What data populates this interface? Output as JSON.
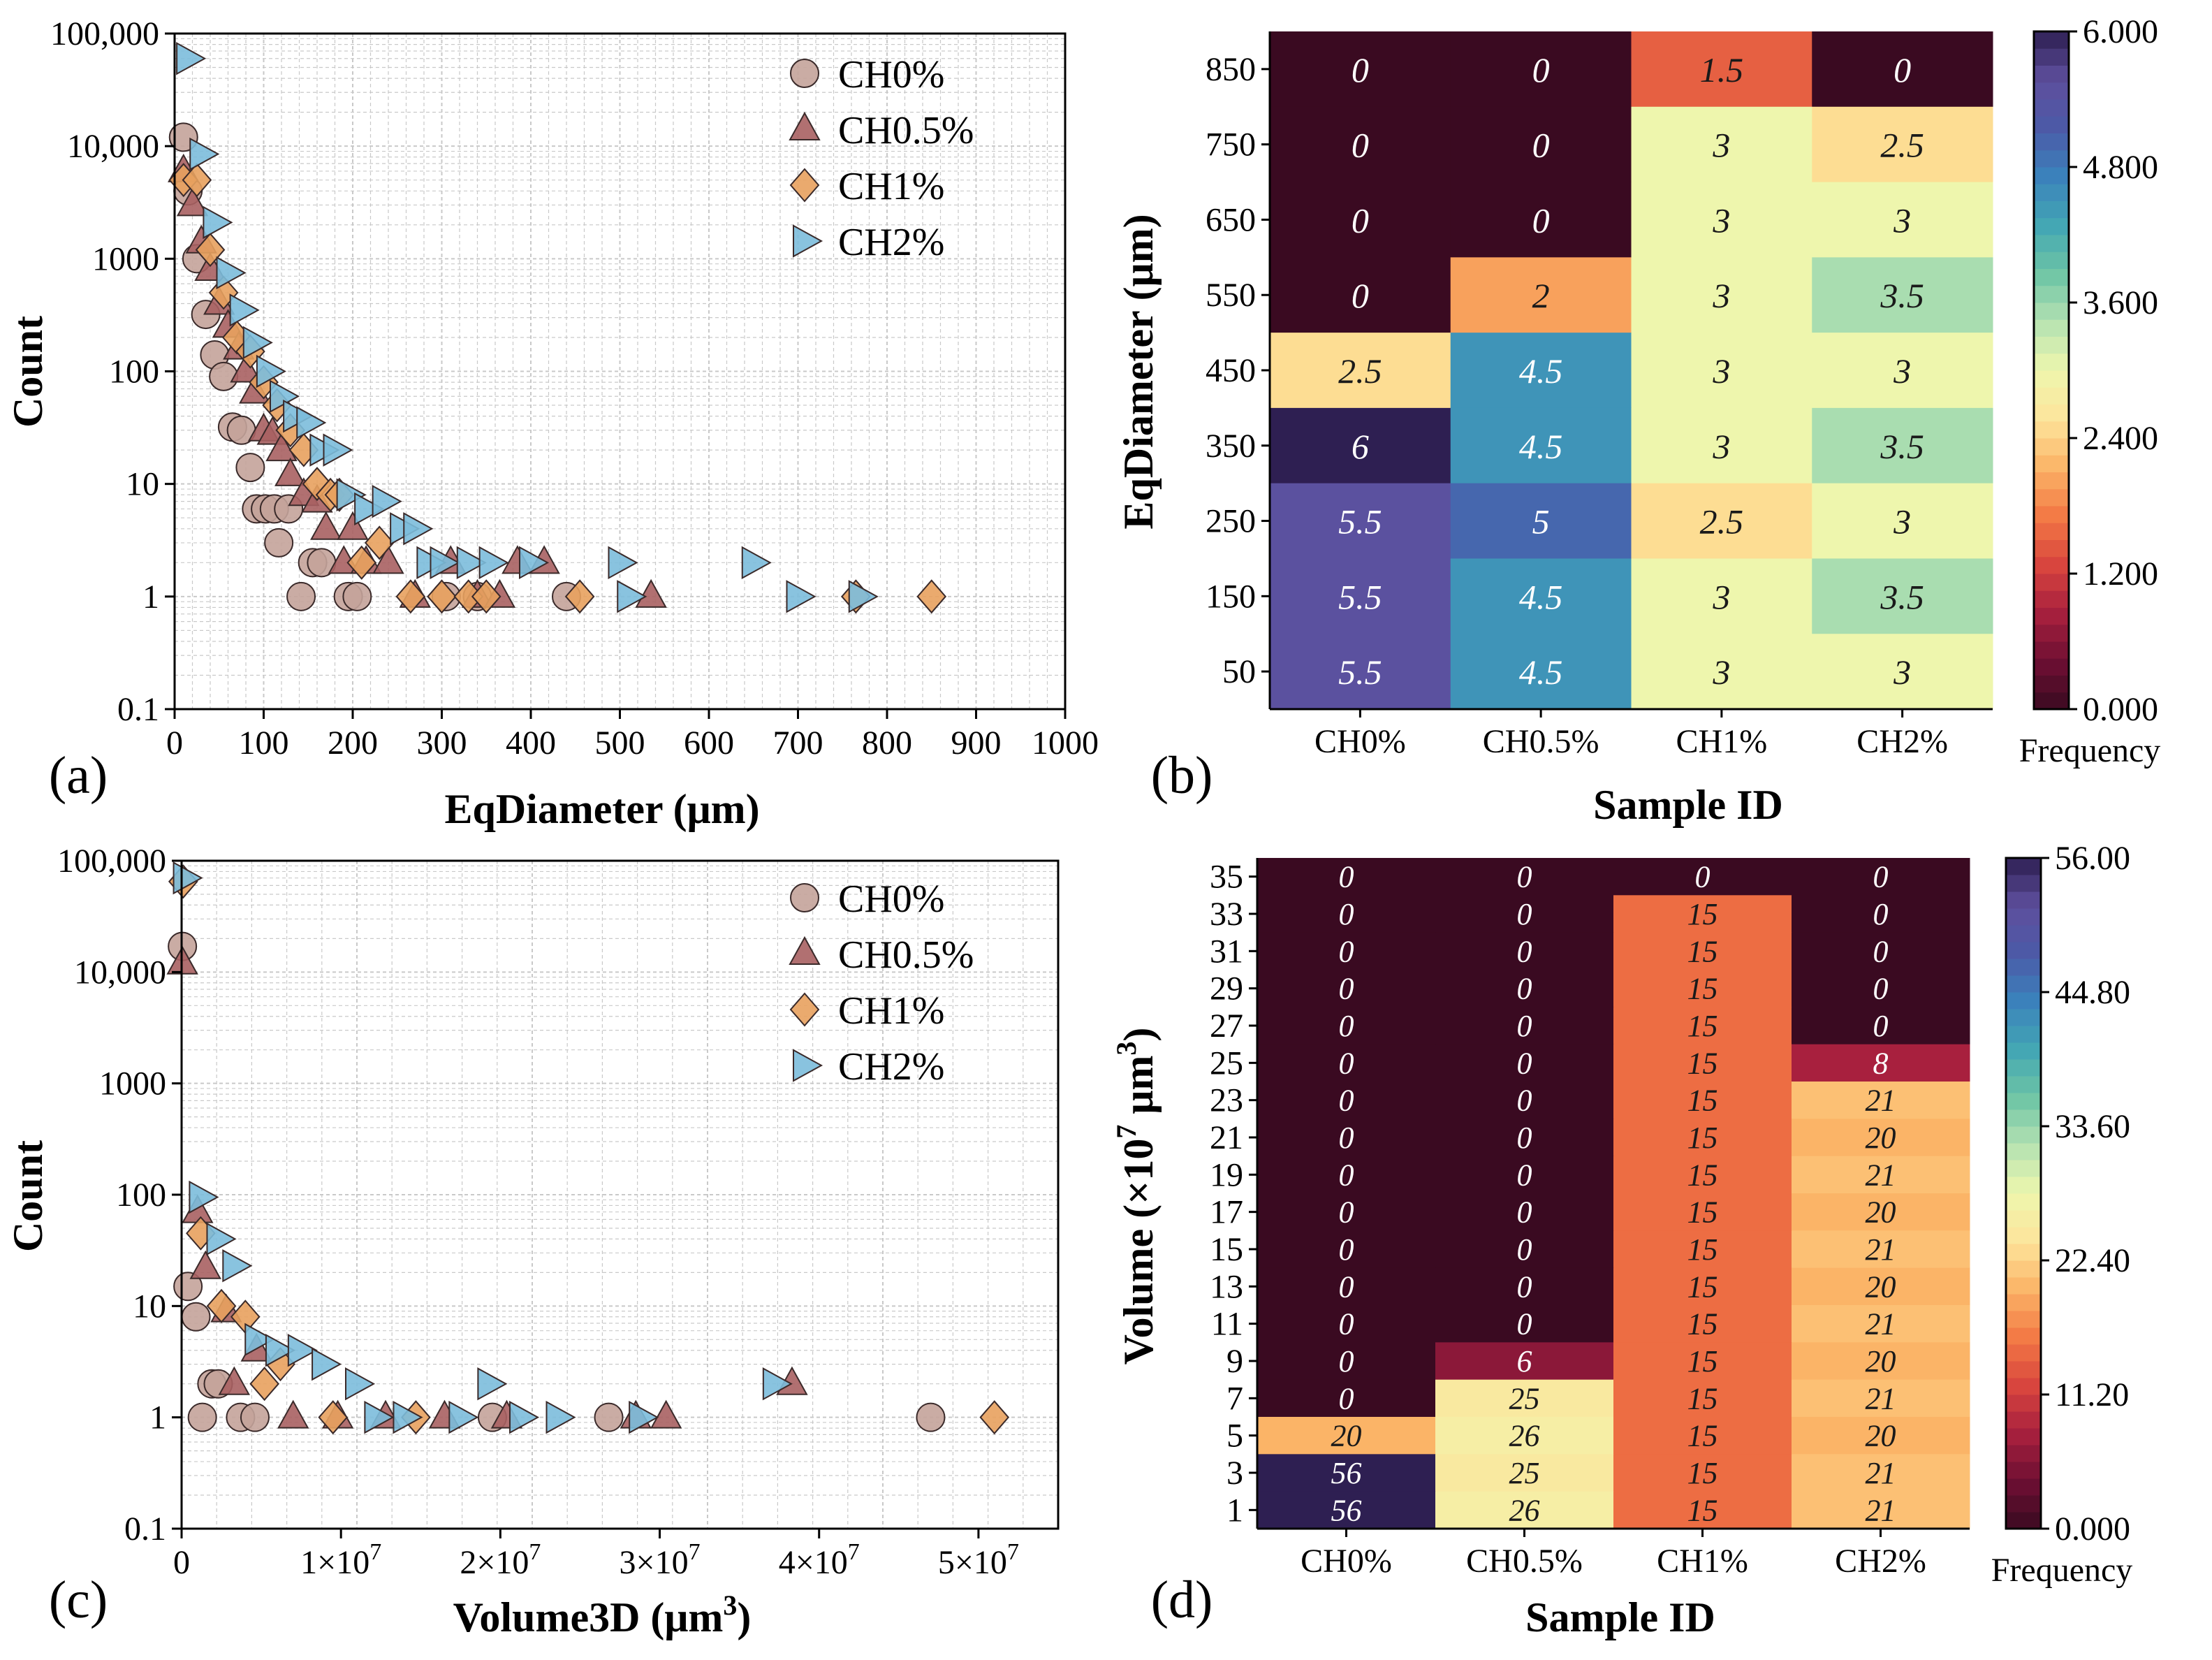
{
  "chart_data": [
    {
      "panel": "(a)",
      "type": "scatter",
      "xlabel": "EqDiameter (μm)",
      "ylabel": "Count",
      "xlim": [
        0,
        1000
      ],
      "ylim": [
        0.1,
        100000
      ],
      "yscale": "log",
      "xticks": [
        "0",
        "100",
        "200",
        "300",
        "400",
        "500",
        "600",
        "700",
        "800",
        "900",
        "1000"
      ],
      "yticks": [
        "0.1",
        "1",
        "10",
        "100",
        "1000",
        "10,000",
        "100,000"
      ],
      "legend_position": "top-right",
      "series": [
        {
          "name": "CH0%",
          "marker": "circle",
          "color": "#c4a39a",
          "points": [
            [
              10,
              12000
            ],
            [
              15,
              4000
            ],
            [
              25,
              1000
            ],
            [
              35,
              320
            ],
            [
              45,
              140
            ],
            [
              55,
              90
            ],
            [
              65,
              32
            ],
            [
              75,
              30
            ],
            [
              85,
              14
            ],
            [
              92,
              6
            ],
            [
              102,
              6
            ],
            [
              112,
              6
            ],
            [
              117,
              3
            ],
            [
              128,
              6
            ],
            [
              142,
              1
            ],
            [
              155,
              2
            ],
            [
              165,
              2
            ],
            [
              195,
              1
            ],
            [
              205,
              1
            ],
            [
              305,
              1
            ],
            [
              340,
              1
            ],
            [
              440,
              1
            ]
          ]
        },
        {
          "name": "CH0.5%",
          "marker": "triangle",
          "color": "#a86062",
          "points": [
            [
              10,
              6000
            ],
            [
              20,
              3000
            ],
            [
              30,
              1400
            ],
            [
              40,
              800
            ],
            [
              50,
              400
            ],
            [
              60,
              250
            ],
            [
              72,
              160
            ],
            [
              80,
              100
            ],
            [
              90,
              65
            ],
            [
              100,
              30
            ],
            [
              110,
              28
            ],
            [
              120,
              20
            ],
            [
              130,
              12
            ],
            [
              145,
              8
            ],
            [
              160,
              7
            ],
            [
              170,
              4
            ],
            [
              190,
              2
            ],
            [
              200,
              4
            ],
            [
              215,
              2
            ],
            [
              240,
              2
            ],
            [
              270,
              1
            ],
            [
              310,
              2
            ],
            [
              340,
              1
            ],
            [
              365,
              1
            ],
            [
              385,
              2
            ],
            [
              415,
              2
            ],
            [
              535,
              1
            ]
          ]
        },
        {
          "name": "CH1%",
          "marker": "diamond",
          "color": "#e8a15e",
          "points": [
            [
              10,
              5000
            ],
            [
              25,
              5000
            ],
            [
              40,
              1200
            ],
            [
              55,
              500
            ],
            [
              70,
              200
            ],
            [
              85,
              150
            ],
            [
              100,
              80
            ],
            [
              115,
              50
            ],
            [
              130,
              30
            ],
            [
              145,
              20
            ],
            [
              160,
              10
            ],
            [
              175,
              8
            ],
            [
              185,
              8
            ],
            [
              210,
              2
            ],
            [
              230,
              3
            ],
            [
              265,
              1
            ],
            [
              300,
              1
            ],
            [
              330,
              1
            ],
            [
              350,
              1
            ],
            [
              455,
              1
            ],
            [
              765,
              1
            ],
            [
              850,
              1
            ]
          ]
        },
        {
          "name": "CH2%",
          "marker": "triangle-right",
          "color": "#7cbcdc",
          "points": [
            [
              15,
              60000
            ],
            [
              30,
              8500
            ],
            [
              45,
              2100
            ],
            [
              60,
              750
            ],
            [
              75,
              350
            ],
            [
              90,
              180
            ],
            [
              105,
              100
            ],
            [
              120,
              60
            ],
            [
              135,
              40
            ],
            [
              150,
              35
            ],
            [
              165,
              20
            ],
            [
              180,
              20
            ],
            [
              195,
              8
            ],
            [
              215,
              6
            ],
            [
              235,
              7
            ],
            [
              255,
              4
            ],
            [
              270,
              4
            ],
            [
              285,
              2
            ],
            [
              300,
              2
            ],
            [
              330,
              2
            ],
            [
              355,
              2
            ],
            [
              400,
              2
            ],
            [
              500,
              2
            ],
            [
              510,
              1
            ],
            [
              650,
              2
            ],
            [
              700,
              1
            ],
            [
              770,
              1
            ]
          ]
        }
      ]
    },
    {
      "panel": "(b)",
      "type": "heatmap",
      "xlabel": "Sample ID",
      "ylabel": "EqDiameter (μm)",
      "categories": [
        "CH0%",
        "CH0.5%",
        "CH1%",
        "CH2%"
      ],
      "y_categories": [
        "850",
        "750",
        "650",
        "550",
        "450",
        "350",
        "250",
        "150",
        "50"
      ],
      "values": [
        [
          0,
          0,
          1.5,
          0
        ],
        [
          0,
          0,
          3,
          2.5
        ],
        [
          0,
          0,
          3,
          3
        ],
        [
          0,
          2,
          3,
          3.5
        ],
        [
          2.5,
          4.5,
          3,
          3
        ],
        [
          6,
          4.5,
          3,
          3.5
        ],
        [
          5.5,
          5,
          2.5,
          3
        ],
        [
          5.5,
          4.5,
          3,
          3.5
        ],
        [
          5.5,
          4.5,
          3,
          3
        ]
      ],
      "cell_labels": [
        [
          "0",
          "0",
          "1.5",
          "0"
        ],
        [
          "0",
          "0",
          "3",
          "2.5"
        ],
        [
          "0",
          "0",
          "3",
          "3"
        ],
        [
          "0",
          "2",
          "3",
          "3.5"
        ],
        [
          "2.5",
          "4.5",
          "3",
          "3"
        ],
        [
          "6",
          "4.5",
          "3",
          "3.5"
        ],
        [
          "5.5",
          "5",
          "2.5",
          "3"
        ],
        [
          "5.5",
          "4.5",
          "3",
          "3.5"
        ],
        [
          "5.5",
          "4.5",
          "3",
          "3"
        ]
      ],
      "vmin": 0,
      "vmax": 6,
      "colorbar_label": "Frequency",
      "colorbar_ticks": [
        "0.000",
        "1.200",
        "2.400",
        "3.600",
        "4.800",
        "6.000"
      ]
    },
    {
      "panel": "(c)",
      "type": "scatter",
      "xlabel": "Volume3D (μm³)",
      "ylabel": "Count",
      "xlim": [
        0,
        55000000
      ],
      "ylim": [
        0.1,
        100000
      ],
      "yscale": "log",
      "xticks": [
        "0",
        "1×10⁷",
        "2×10⁷",
        "3×10⁷",
        "4×10⁷",
        "5×10⁷"
      ],
      "yticks": [
        "0.1",
        "1",
        "10",
        "100",
        "1000",
        "10,000",
        "100,000"
      ],
      "legend_position": "top-right",
      "series": [
        {
          "name": "CH0%",
          "marker": "circle",
          "color": "#c4a39a",
          "points": [
            [
              50000,
              17000
            ],
            [
              400000,
              15
            ],
            [
              900000,
              8
            ],
            [
              1300000,
              1
            ],
            [
              1900000,
              2
            ],
            [
              2300000,
              2
            ],
            [
              3700000,
              1
            ],
            [
              4600000,
              1
            ],
            [
              19500000,
              1
            ],
            [
              26800000,
              1
            ],
            [
              47000000,
              1
            ]
          ]
        },
        {
          "name": "CH0.5%",
          "marker": "triangle",
          "color": "#a86062",
          "points": [
            [
              50000,
              12000
            ],
            [
              1000000,
              70
            ],
            [
              1500000,
              22
            ],
            [
              2800000,
              9
            ],
            [
              3300000,
              2
            ],
            [
              4700000,
              4
            ],
            [
              7000000,
              1
            ],
            [
              9800000,
              1
            ],
            [
              12800000,
              1
            ],
            [
              16500000,
              1
            ],
            [
              20400000,
              1
            ],
            [
              28500000,
              1
            ],
            [
              30400000,
              1
            ],
            [
              38300000,
              2
            ]
          ]
        },
        {
          "name": "CH1%",
          "marker": "diamond",
          "color": "#e8a15e",
          "points": [
            [
              100000,
              65000
            ],
            [
              1200000,
              45
            ],
            [
              2500000,
              10
            ],
            [
              4000000,
              8
            ],
            [
              5200000,
              2
            ],
            [
              6200000,
              3
            ],
            [
              9500000,
              1
            ],
            [
              14700000,
              1
            ],
            [
              51000000,
              1
            ]
          ]
        },
        {
          "name": "CH2%",
          "marker": "triangle-right",
          "color": "#7cbcdc",
          "points": [
            [
              200000,
              70000
            ],
            [
              1200000,
              95
            ],
            [
              2300000,
              40
            ],
            [
              3300000,
              23
            ],
            [
              4700000,
              5
            ],
            [
              6000000,
              4
            ],
            [
              7400000,
              4
            ],
            [
              8900000,
              3
            ],
            [
              11000000,
              2
            ],
            [
              12200000,
              1
            ],
            [
              14000000,
              1
            ],
            [
              17500000,
              1
            ],
            [
              19300000,
              2
            ],
            [
              21300000,
              1
            ],
            [
              23600000,
              1
            ],
            [
              28800000,
              1
            ],
            [
              37200000,
              2
            ]
          ]
        }
      ]
    },
    {
      "panel": "(d)",
      "type": "heatmap",
      "xlabel": "Sample ID",
      "ylabel": "Volume (×10⁷ μm³)",
      "categories": [
        "CH0%",
        "CH0.5%",
        "CH1%",
        "CH2%"
      ],
      "y_categories": [
        "35",
        "33",
        "31",
        "29",
        "27",
        "25",
        "23",
        "21",
        "19",
        "17",
        "15",
        "13",
        "11",
        "9",
        "7",
        "5",
        "3",
        "1"
      ],
      "values": [
        [
          0,
          0,
          0,
          0
        ],
        [
          0,
          0,
          15,
          0
        ],
        [
          0,
          0,
          15,
          0
        ],
        [
          0,
          0,
          15,
          0
        ],
        [
          0,
          0,
          15,
          0
        ],
        [
          0,
          0,
          15,
          8
        ],
        [
          0,
          0,
          15,
          21
        ],
        [
          0,
          0,
          15,
          20
        ],
        [
          0,
          0,
          15,
          21
        ],
        [
          0,
          0,
          15,
          20
        ],
        [
          0,
          0,
          15,
          21
        ],
        [
          0,
          0,
          15,
          20
        ],
        [
          0,
          0,
          15,
          21
        ],
        [
          0,
          6,
          15,
          20
        ],
        [
          0,
          25,
          15,
          21
        ],
        [
          20,
          26,
          15,
          20
        ],
        [
          56,
          25,
          15,
          21
        ],
        [
          56,
          26,
          15,
          21
        ]
      ],
      "cell_labels": [
        [
          "0",
          "0",
          "0",
          "0"
        ],
        [
          "0",
          "0",
          "15",
          "0"
        ],
        [
          "0",
          "0",
          "15",
          "0"
        ],
        [
          "0",
          "0",
          "15",
          "0"
        ],
        [
          "0",
          "0",
          "15",
          "0"
        ],
        [
          "0",
          "0",
          "15",
          "8"
        ],
        [
          "0",
          "0",
          "15",
          "21"
        ],
        [
          "0",
          "0",
          "15",
          "20"
        ],
        [
          "0",
          "0",
          "15",
          "21"
        ],
        [
          "0",
          "0",
          "15",
          "20"
        ],
        [
          "0",
          "0",
          "15",
          "21"
        ],
        [
          "0",
          "0",
          "15",
          "20"
        ],
        [
          "0",
          "0",
          "15",
          "21"
        ],
        [
          "0",
          "6",
          "15",
          "20"
        ],
        [
          "0",
          "25",
          "15",
          "21"
        ],
        [
          "20",
          "26",
          "15",
          "20"
        ],
        [
          "56",
          "25",
          "15",
          "21"
        ],
        [
          "56",
          "26",
          "15",
          "21"
        ]
      ],
      "vmin": 0,
      "vmax": 56,
      "colorbar_label": "Frequency",
      "colorbar_ticks": [
        "0.000",
        "11.20",
        "22.40",
        "33.60",
        "44.80",
        "56.00"
      ]
    }
  ],
  "colormap": [
    "#3a0a21",
    "#6e0f33",
    "#a8203e",
    "#d9463e",
    "#f37a45",
    "#fbb467",
    "#fde59c",
    "#eef6ad",
    "#b5e2b2",
    "#6ec5a5",
    "#43a6b4",
    "#3b82bb",
    "#4c5aa7",
    "#5e4f9d",
    "#2e1f52"
  ]
}
